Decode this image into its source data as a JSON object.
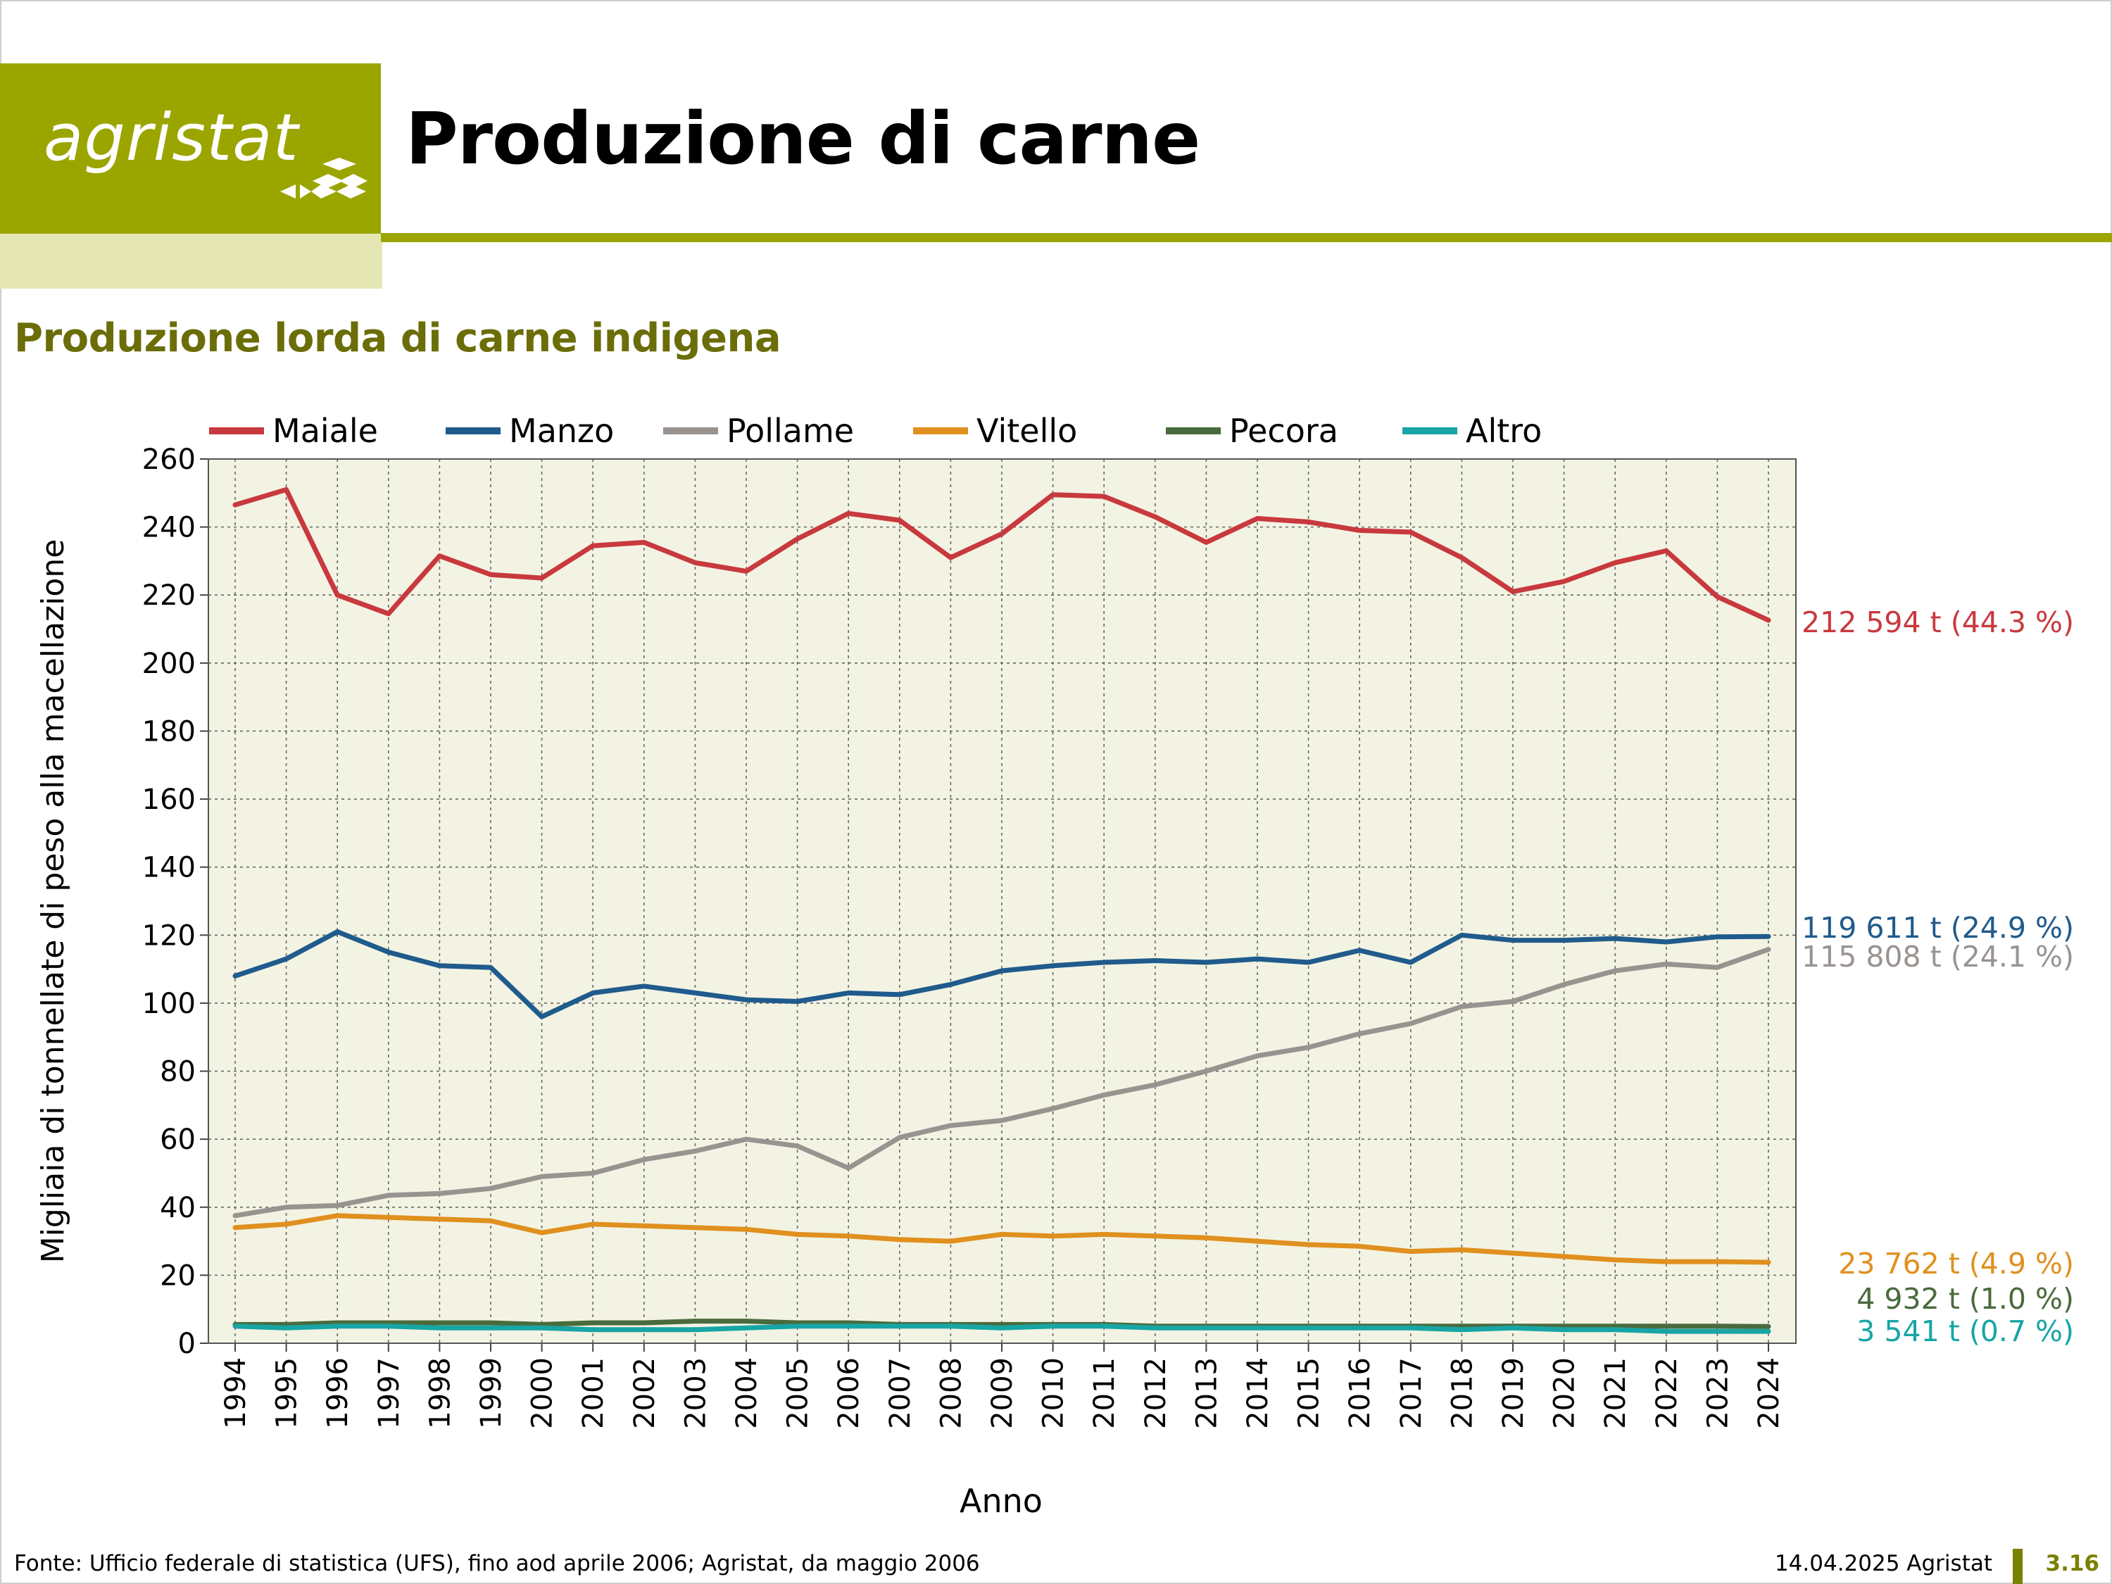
{
  "header": {
    "logo_text": "agristat",
    "title": "Produzione di carne",
    "subtitle": "Produzione lorda di carne indigena"
  },
  "footer": {
    "source": "Fonte: Ufficio federale di statistica (UFS), fino aod aprile 2006; Agristat, da maggio 2006",
    "date": "14.04.2025 Agristat",
    "page": "3.16"
  },
  "colors": {
    "brand": "#9ba500",
    "brand_light": "#e4e7b3",
    "subtitle": "#6b6d08",
    "plot_bg": "#f3f3e3"
  },
  "chart_data": {
    "type": "line",
    "title": "Produzione lorda di carne indigena",
    "xlabel": "Anno",
    "ylabel": "Migliaia di tonnellate di peso alla macellazione",
    "ylim": [
      0,
      260
    ],
    "yticks": [
      0,
      20,
      40,
      60,
      80,
      100,
      120,
      140,
      160,
      180,
      200,
      220,
      240,
      260
    ],
    "grid": true,
    "legend_position": "top",
    "x": [
      1994,
      1995,
      1996,
      1997,
      1998,
      1999,
      2000,
      2001,
      2002,
      2003,
      2004,
      2005,
      2006,
      2007,
      2008,
      2009,
      2010,
      2011,
      2012,
      2013,
      2014,
      2015,
      2016,
      2017,
      2018,
      2019,
      2020,
      2021,
      2022,
      2023,
      2024
    ],
    "series": [
      {
        "name": "Maiale",
        "color": "#c8393e",
        "end_label": "212 594 t (44.3 %)",
        "values": [
          246.5,
          251,
          220,
          214.5,
          231.5,
          226,
          225,
          234.5,
          235.5,
          229.5,
          227,
          236.5,
          244,
          242,
          231,
          238,
          249.5,
          249,
          243,
          235.5,
          242.5,
          241.5,
          239,
          238.5,
          231,
          221,
          224,
          229.5,
          233,
          219.5,
          212.6
        ]
      },
      {
        "name": "Manzo",
        "color": "#1f5b8c",
        "end_label": "119 611 t (24.9 %)",
        "values": [
          108,
          113,
          121,
          115,
          111,
          110.5,
          96,
          103,
          105,
          103,
          101,
          100.5,
          103,
          102.5,
          105.5,
          109.5,
          111,
          112,
          112.5,
          112,
          113,
          112,
          115.5,
          112,
          120,
          118.5,
          118.5,
          119,
          118,
          119.5,
          119.6
        ]
      },
      {
        "name": "Pollame",
        "color": "#999390",
        "end_label": "115 808 t (24.1 %)",
        "values": [
          37.5,
          40,
          40.5,
          43.5,
          44,
          45.5,
          49,
          50,
          54,
          56.5,
          60,
          58,
          51.5,
          60.5,
          64,
          65.5,
          69,
          73,
          76,
          80,
          84.5,
          87,
          91,
          94,
          99,
          100.5,
          105.5,
          109.5,
          111.5,
          110.5,
          115.8
        ]
      },
      {
        "name": "Vitello",
        "color": "#e0901e",
        "end_label": "23 762 t (4.9 %)",
        "values": [
          34,
          35,
          37.5,
          37,
          36.5,
          36,
          32.5,
          35,
          34.5,
          34,
          33.5,
          32,
          31.5,
          30.5,
          30,
          32,
          31.5,
          32,
          31.5,
          31,
          30,
          29,
          28.5,
          27,
          27.5,
          26.5,
          25.5,
          24.5,
          24,
          24,
          23.8
        ]
      },
      {
        "name": "Pecora",
        "color": "#4a6b3d",
        "end_label": "4 932 t (1.0 %)",
        "values": [
          5.5,
          5.5,
          6,
          6,
          6,
          6,
          5.5,
          6,
          6,
          6.5,
          6.5,
          6,
          6,
          5.5,
          5.5,
          5.5,
          5.5,
          5.5,
          5,
          5,
          5,
          5,
          5,
          5,
          5,
          5,
          5,
          5,
          5,
          5,
          4.9
        ]
      },
      {
        "name": "Altro",
        "color": "#17a5a5",
        "end_label": "3 541 t (0.7 %)",
        "values": [
          5,
          4.5,
          5,
          5,
          4.5,
          4.5,
          4.5,
          4,
          4,
          4,
          4.5,
          5,
          5,
          5,
          5,
          4.5,
          5,
          5,
          4.5,
          4.5,
          4.5,
          4.5,
          4.5,
          4.5,
          4,
          4.5,
          4,
          4,
          3.5,
          3.5,
          3.5
        ]
      }
    ]
  }
}
